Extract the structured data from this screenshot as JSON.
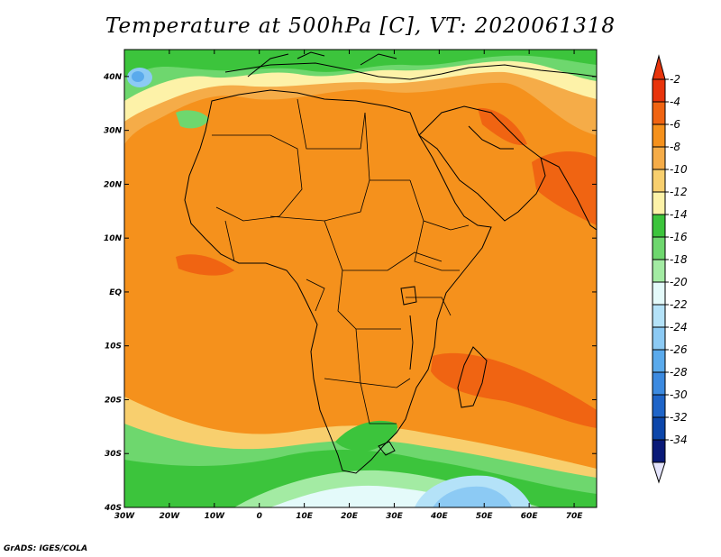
{
  "title": "Temperature at 500hPa [C], VT: 2020061318",
  "credit": "GrADS: IGES/COLA",
  "map": {
    "lon_range": [
      -30,
      75
    ],
    "lat_range": [
      -40,
      45
    ],
    "lat_ticks": [
      {
        "lat": 40,
        "label": "40N"
      },
      {
        "lat": 30,
        "label": "30N"
      },
      {
        "lat": 20,
        "label": "20N"
      },
      {
        "lat": 10,
        "label": "10N"
      },
      {
        "lat": 0,
        "label": "EQ"
      },
      {
        "lat": -10,
        "label": "10S"
      },
      {
        "lat": -20,
        "label": "20S"
      },
      {
        "lat": -30,
        "label": "30S"
      },
      {
        "lat": -40,
        "label": "40S"
      }
    ],
    "lon_ticks": [
      {
        "lon": -30,
        "label": "30W"
      },
      {
        "lon": -20,
        "label": "20W"
      },
      {
        "lon": -10,
        "label": "10W"
      },
      {
        "lon": 0,
        "label": "0"
      },
      {
        "lon": 10,
        "label": "10E"
      },
      {
        "lon": 20,
        "label": "20E"
      },
      {
        "lon": 30,
        "label": "30E"
      },
      {
        "lon": 40,
        "label": "40E"
      },
      {
        "lon": 50,
        "label": "50E"
      },
      {
        "lon": 60,
        "label": "60E"
      },
      {
        "lon": 70,
        "label": "70E"
      }
    ]
  },
  "colorbar": {
    "labels": [
      "-2",
      "-4",
      "-6",
      "-8",
      "-10",
      "-12",
      "-14",
      "-16",
      "-18",
      "-20",
      "-22",
      "-24",
      "-26",
      "-28",
      "-30",
      "-32",
      "-34"
    ],
    "colors": [
      "#e8340c",
      "#f06412",
      "#f5911c",
      "#f5ac48",
      "#f8cf6e",
      "#fdf2a8",
      "#3cc43c",
      "#6ed76e",
      "#a3eba3",
      "#e4fafa",
      "#b4e2f8",
      "#8ccaf4",
      "#5aaaec",
      "#3c8ae0",
      "#1e64c8",
      "#0c46aa",
      "#0a1a78"
    ],
    "top_arrow_color": "#e8340c",
    "bottom_arrow_color": "#e4e4fc"
  }
}
